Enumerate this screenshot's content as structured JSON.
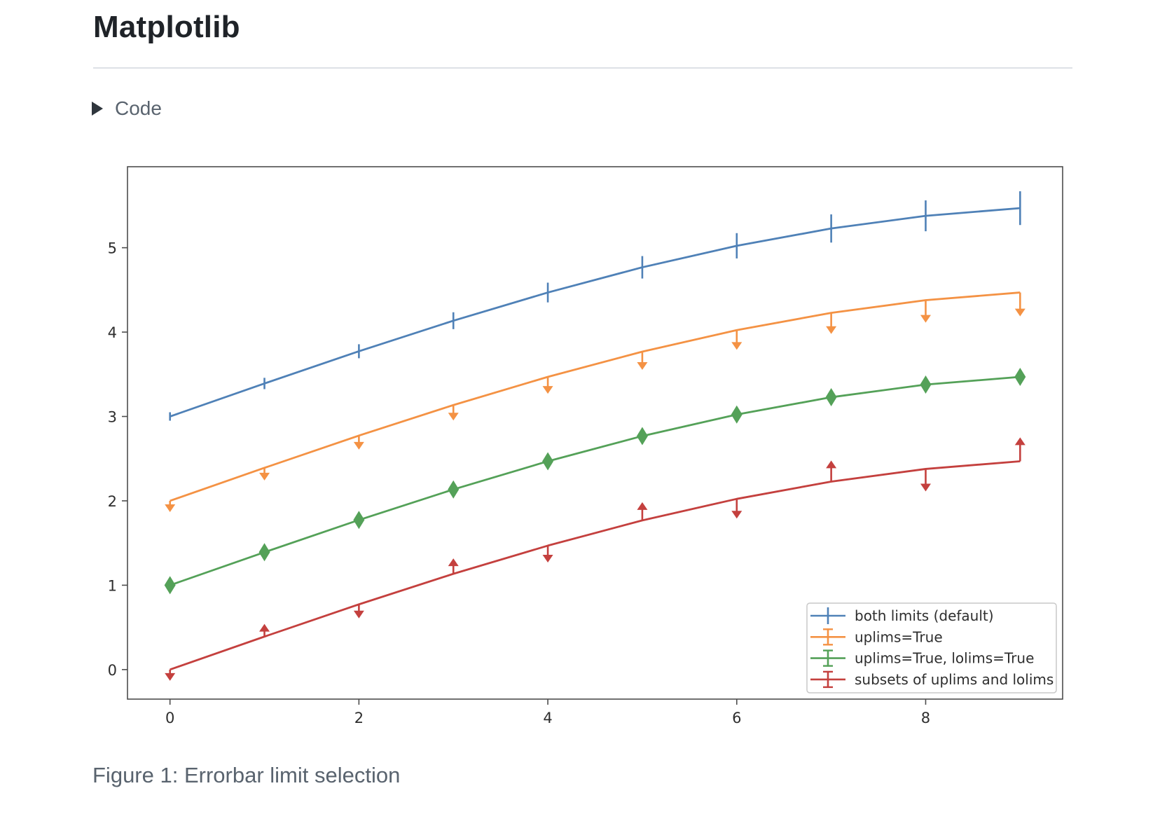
{
  "page": {
    "title": "Matplotlib",
    "code_toggle_label": "Code",
    "figure_caption": "Figure 1: Errorbar limit selection"
  },
  "chart_data": {
    "type": "line",
    "title": "",
    "xlabel": "",
    "ylabel": "",
    "grid": false,
    "x": [
      0,
      1,
      2,
      3,
      4,
      5,
      6,
      7,
      8,
      9
    ],
    "yerr": [
      0.05,
      0.067,
      0.083,
      0.1,
      0.117,
      0.133,
      0.15,
      0.167,
      0.183,
      0.2
    ],
    "xticks": [
      0,
      2,
      4,
      6,
      8
    ],
    "yticks": [
      0,
      1,
      2,
      3,
      4,
      5
    ],
    "xlim": [
      -0.45,
      9.45
    ],
    "ylim": [
      -0.35,
      5.96
    ],
    "series": [
      {
        "label": "both limits (default)",
        "color": "#4f81b7",
        "limits": "none",
        "values": [
          3.0,
          3.391,
          3.773,
          4.135,
          4.469,
          4.768,
          5.023,
          5.228,
          5.378,
          5.469
        ]
      },
      {
        "label": "uplims=True",
        "color": "#f49244",
        "limits": "uplims",
        "values": [
          2.0,
          2.391,
          2.773,
          3.135,
          3.469,
          3.768,
          4.023,
          4.228,
          4.378,
          4.469
        ]
      },
      {
        "label": "uplims=True, lolims=True",
        "color": "#54a158",
        "limits": "uplims_lolims",
        "values": [
          1.0,
          1.391,
          1.773,
          2.135,
          2.469,
          2.768,
          3.023,
          3.228,
          3.378,
          3.469
        ]
      },
      {
        "label": "subsets of uplims and lolims",
        "color": "#c4403e",
        "limits": "alternating",
        "uplims_indices": [
          0,
          2,
          4,
          6,
          8
        ],
        "lolims_indices": [
          1,
          3,
          5,
          7,
          9
        ],
        "values": [
          0.0,
          0.391,
          0.773,
          1.135,
          1.469,
          1.768,
          2.023,
          2.228,
          2.378,
          2.469
        ]
      }
    ],
    "legend": {
      "position": "lower right",
      "entries": [
        "both limits (default)",
        "uplims=True",
        "uplims=True, lolims=True",
        "subsets of uplims and lolims"
      ]
    }
  }
}
